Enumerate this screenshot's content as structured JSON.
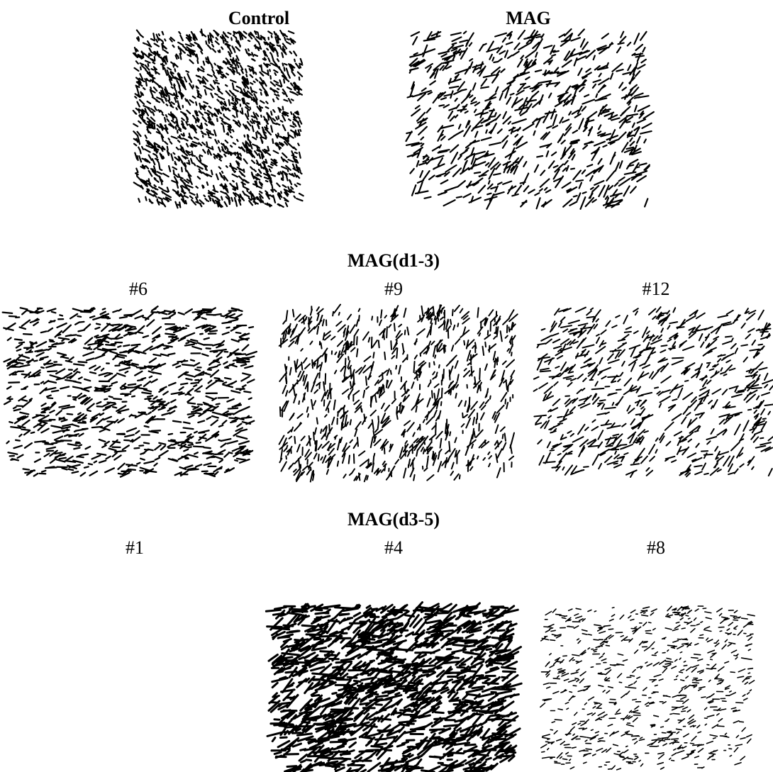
{
  "top": {
    "panels": [
      {
        "label": "Control"
      },
      {
        "label": "MAG"
      }
    ]
  },
  "groups": [
    {
      "title": "MAG(d1-3)",
      "panels": [
        {
          "label": "#6"
        },
        {
          "label": "#9"
        },
        {
          "label": "#12"
        }
      ]
    },
    {
      "title": "MAG(d3-5)",
      "panels": [
        {
          "label": "#1"
        },
        {
          "label": "#4"
        },
        {
          "label": "#8"
        }
      ]
    }
  ]
}
